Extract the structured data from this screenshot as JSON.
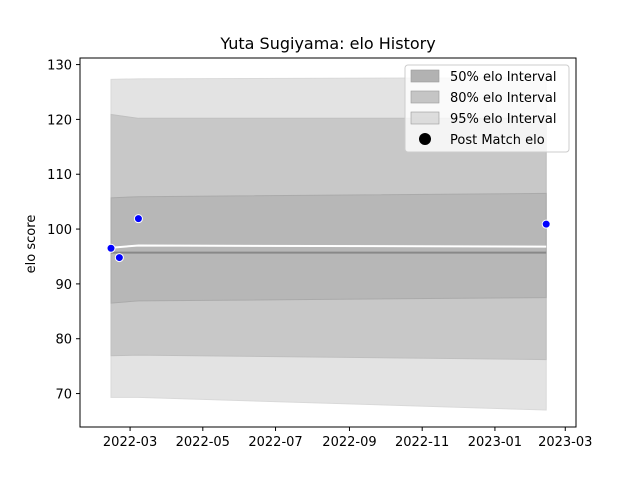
{
  "chart_data": {
    "type": "area",
    "title": "Yuta Sugiyama: elo History",
    "xlabel": "",
    "ylabel": "elo score",
    "xlim": [
      "2022-01-18",
      "2023-03-10"
    ],
    "ylim": [
      63.9,
      131.2
    ],
    "x_ticks": [
      "2022-03-01",
      "2022-05-01",
      "2022-07-01",
      "2022-09-01",
      "2022-11-01",
      "2023-01-01",
      "2023-03-01"
    ],
    "x_tick_labels": [
      "2022-03",
      "2022-05",
      "2022-07",
      "2022-09",
      "2022-11",
      "2023-01",
      "2023-03"
    ],
    "y_ticks": [
      70,
      80,
      90,
      100,
      110,
      120,
      130
    ],
    "y_tick_labels": [
      "70",
      "80",
      "90",
      "100",
      "110",
      "120",
      "130"
    ],
    "grid": false,
    "legend_position": "upper right",
    "colors": {
      "band_50": "#aaaaaa",
      "band_80": "#bfbfbf",
      "band_95": "#d9d9d9",
      "point_fill": "#0000ff",
      "point_edge": "#ffffff",
      "mean_line": "#ffffff",
      "median_line": "#888888"
    },
    "band_x": [
      "2022-02-13",
      "2022-03-08",
      "2023-02-13"
    ],
    "bands": [
      {
        "name": "95% elo Interval",
        "lower": [
          69.3,
          69.3,
          67.0
        ],
        "upper": [
          127.3,
          127.4,
          127.6
        ]
      },
      {
        "name": "80% elo Interval",
        "lower": [
          76.9,
          77.0,
          76.2
        ],
        "upper": [
          120.9,
          120.2,
          120.2
        ]
      },
      {
        "name": "50% elo Interval",
        "lower": [
          86.5,
          86.9,
          87.5
        ],
        "upper": [
          105.7,
          105.9,
          106.5
        ]
      }
    ],
    "mean_line": {
      "x": [
        "2022-02-13",
        "2022-03-08",
        "2023-02-13"
      ],
      "y": [
        96.6,
        97.0,
        96.8
      ]
    },
    "median_line": {
      "x": [
        "2022-02-13",
        "2023-02-13"
      ],
      "y": [
        95.7,
        95.7
      ]
    },
    "series": [
      {
        "name": "Post Match elo",
        "x": [
          "2022-02-13",
          "2022-02-20",
          "2022-03-08",
          "2023-02-13"
        ],
        "y": [
          96.5,
          94.8,
          101.9,
          100.9
        ]
      }
    ],
    "legend": [
      "50% elo Interval",
      "80% elo Interval",
      "95% elo Interval",
      "Post Match elo"
    ]
  }
}
